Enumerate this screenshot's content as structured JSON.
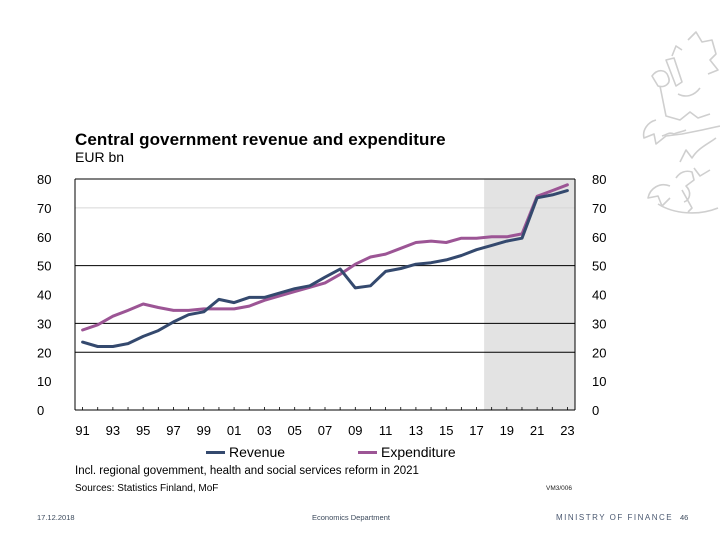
{
  "slide": {
    "footer": {
      "date": "17.12.2018",
      "department": "Economics Department",
      "ministry": "MINISTRY OF FINANCE",
      "page_number": "46"
    },
    "chart_code": "VM3/006",
    "emblem_icon": "finnish-lion-emblem"
  },
  "chart_data": {
    "type": "line",
    "title": "Central government revenue and expenditure",
    "subtitle": "EUR bn",
    "xlabel": "",
    "ylabel": "EUR bn",
    "x": [
      1991,
      1992,
      1993,
      1994,
      1995,
      1996,
      1997,
      1998,
      1999,
      2000,
      2001,
      2002,
      2003,
      2004,
      2005,
      2006,
      2007,
      2008,
      2009,
      2010,
      2011,
      2012,
      2013,
      2014,
      2015,
      2016,
      2017,
      2018,
      2019,
      2020,
      2021,
      2022,
      2023
    ],
    "xlim": [
      1990.5,
      2023.5
    ],
    "ylim": [
      0,
      80
    ],
    "yticks": [
      0,
      10,
      20,
      30,
      40,
      50,
      60,
      70,
      80
    ],
    "ytick_labels": [
      "0",
      "10",
      "20",
      "30",
      "40",
      "50",
      "60",
      "70",
      "80"
    ],
    "xtick_labels": [
      "91",
      "93",
      "95",
      "97",
      "99",
      "01",
      "03",
      "05",
      "07",
      "09",
      "11",
      "13",
      "15",
      "17",
      "19",
      "21",
      "23"
    ],
    "xtick_years": [
      1991,
      1993,
      1995,
      1997,
      1999,
      2001,
      2003,
      2005,
      2007,
      2009,
      2011,
      2013,
      2015,
      2017,
      2019,
      2021,
      2023
    ],
    "major_gridlines": [
      20,
      30,
      50
    ],
    "minor_gridlines": [
      70
    ],
    "y_axis_both_sides": true,
    "forecast_shading": {
      "from_year": 2017.5,
      "to_year": 2023.5,
      "color": "#e3e3e3"
    },
    "legend_placement": "bottom",
    "series": [
      {
        "name": "Revenue",
        "color": "#34496e",
        "values": [
          23.5,
          22,
          22,
          23,
          25.5,
          27.5,
          30.5,
          33,
          34,
          38.3,
          37.2,
          39,
          39,
          40.5,
          42,
          43,
          46,
          48.8,
          42.3,
          43,
          48,
          49,
          50.5,
          51,
          52,
          53.5,
          55.5,
          57,
          58.5,
          59.5,
          73.5,
          74.5,
          76
        ]
      },
      {
        "name": "Expenditure",
        "color": "#9c5595",
        "values": [
          27.7,
          29.5,
          32.5,
          34.5,
          36.7,
          35.5,
          34.5,
          34.5,
          35,
          35,
          35,
          36,
          38,
          39.5,
          41,
          42.5,
          44,
          47,
          50.5,
          53,
          54,
          56,
          58,
          58.5,
          58,
          59.5,
          59.5,
          60,
          60,
          61,
          74,
          76,
          78
        ]
      }
    ],
    "annotations": [
      "Incl. regional govemment, health and social services reform in 2021",
      "Sources: Statistics Finland, MoF"
    ]
  }
}
